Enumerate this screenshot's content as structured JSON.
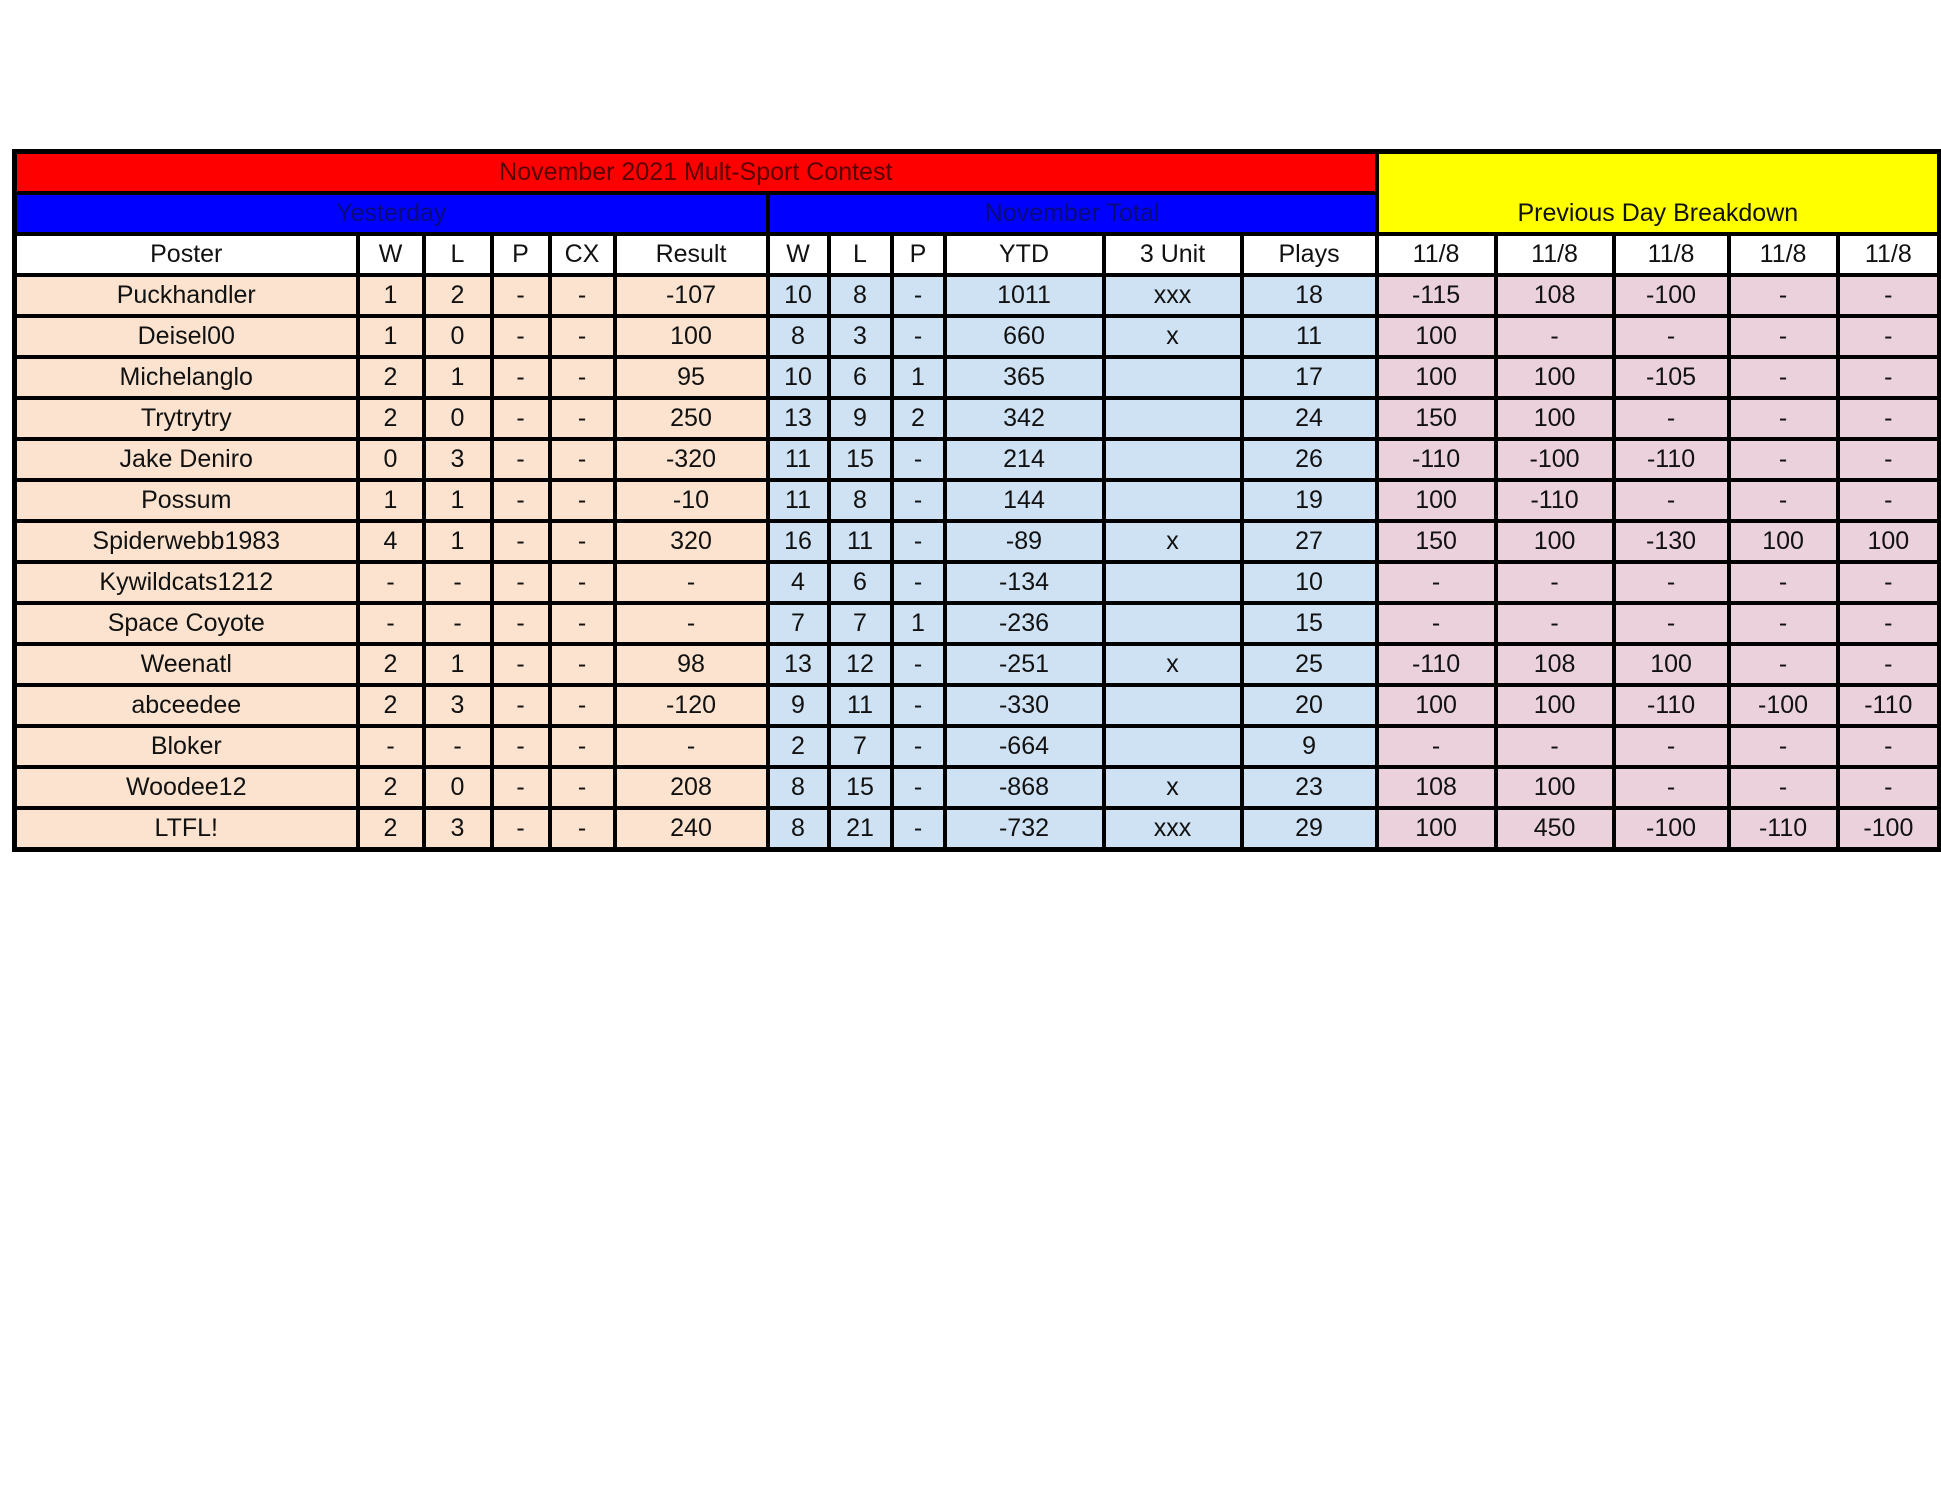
{
  "title": "November 2021 Mult-Sport Contest",
  "sections": {
    "yesterday": "Yesterday",
    "november_total": "November Total",
    "previous_day": "Previous Day Breakdown"
  },
  "colors": {
    "title": "#ff0000",
    "section": "#0000ff",
    "previous_day": "#ffff00",
    "yesterday_cells": "#fbe3cf",
    "total_cells": "#cfe2f3",
    "breakdown_cells": "#ead1dc"
  },
  "headers": [
    "Poster",
    "W",
    "L",
    "P",
    "CX",
    "Result",
    "W",
    "L",
    "P",
    "YTD",
    "3 Unit",
    "Plays",
    "11/8",
    "11/8",
    "11/8",
    "11/8",
    "11/8"
  ],
  "rows": [
    [
      "Puckhandler",
      "1",
      "2",
      "-",
      "-",
      "-107",
      "10",
      "8",
      "-",
      "1011",
      "xxx",
      "18",
      "-115",
      "108",
      "-100",
      "-",
      "-"
    ],
    [
      "Deisel00",
      "1",
      "0",
      "-",
      "-",
      "100",
      "8",
      "3",
      "-",
      "660",
      "x",
      "11",
      "100",
      "-",
      "-",
      "-",
      "-"
    ],
    [
      "Michelanglo",
      "2",
      "1",
      "-",
      "-",
      "95",
      "10",
      "6",
      "1",
      "365",
      "",
      "17",
      "100",
      "100",
      "-105",
      "-",
      "-"
    ],
    [
      "Trytrytry",
      "2",
      "0",
      "-",
      "-",
      "250",
      "13",
      "9",
      "2",
      "342",
      "",
      "24",
      "150",
      "100",
      "-",
      "-",
      "-"
    ],
    [
      "Jake Deniro",
      "0",
      "3",
      "-",
      "-",
      "-320",
      "11",
      "15",
      "-",
      "214",
      "",
      "26",
      "-110",
      "-100",
      "-110",
      "-",
      "-"
    ],
    [
      "Possum",
      "1",
      "1",
      "-",
      "-",
      "-10",
      "11",
      "8",
      "-",
      "144",
      "",
      "19",
      "100",
      "-110",
      "-",
      "-",
      "-"
    ],
    [
      "Spiderwebb1983",
      "4",
      "1",
      "-",
      "-",
      "320",
      "16",
      "11",
      "-",
      "-89",
      "x",
      "27",
      "150",
      "100",
      "-130",
      "100",
      "100"
    ],
    [
      "Kywildcats1212",
      "-",
      "-",
      "-",
      "-",
      "-",
      "4",
      "6",
      "-",
      "-134",
      "",
      "10",
      "-",
      "-",
      "-",
      "-",
      "-"
    ],
    [
      "Space Coyote",
      "-",
      "-",
      "-",
      "-",
      "-",
      "7",
      "7",
      "1",
      "-236",
      "",
      "15",
      "-",
      "-",
      "-",
      "-",
      "-"
    ],
    [
      "Weenatl",
      "2",
      "1",
      "-",
      "-",
      "98",
      "13",
      "12",
      "-",
      "-251",
      "x",
      "25",
      "-110",
      "108",
      "100",
      "-",
      "-"
    ],
    [
      "abceedee",
      "2",
      "3",
      "-",
      "-",
      "-120",
      "9",
      "11",
      "-",
      "-330",
      "",
      "20",
      "100",
      "100",
      "-110",
      "-100",
      "-110"
    ],
    [
      "Bloker",
      "-",
      "-",
      "-",
      "-",
      "-",
      "2",
      "7",
      "-",
      "-664",
      "",
      "9",
      "-",
      "-",
      "-",
      "-",
      "-"
    ],
    [
      "Woodee12",
      "2",
      "0",
      "-",
      "-",
      "208",
      "8",
      "15",
      "-",
      "-868",
      "x",
      "23",
      "108",
      "100",
      "-",
      "-",
      "-"
    ],
    [
      "LTFL!",
      "2",
      "3",
      "-",
      "-",
      "240",
      "8",
      "21",
      "-",
      "-732",
      "xxx",
      "29",
      "100",
      "450",
      "-100",
      "-110",
      "-100"
    ]
  ]
}
